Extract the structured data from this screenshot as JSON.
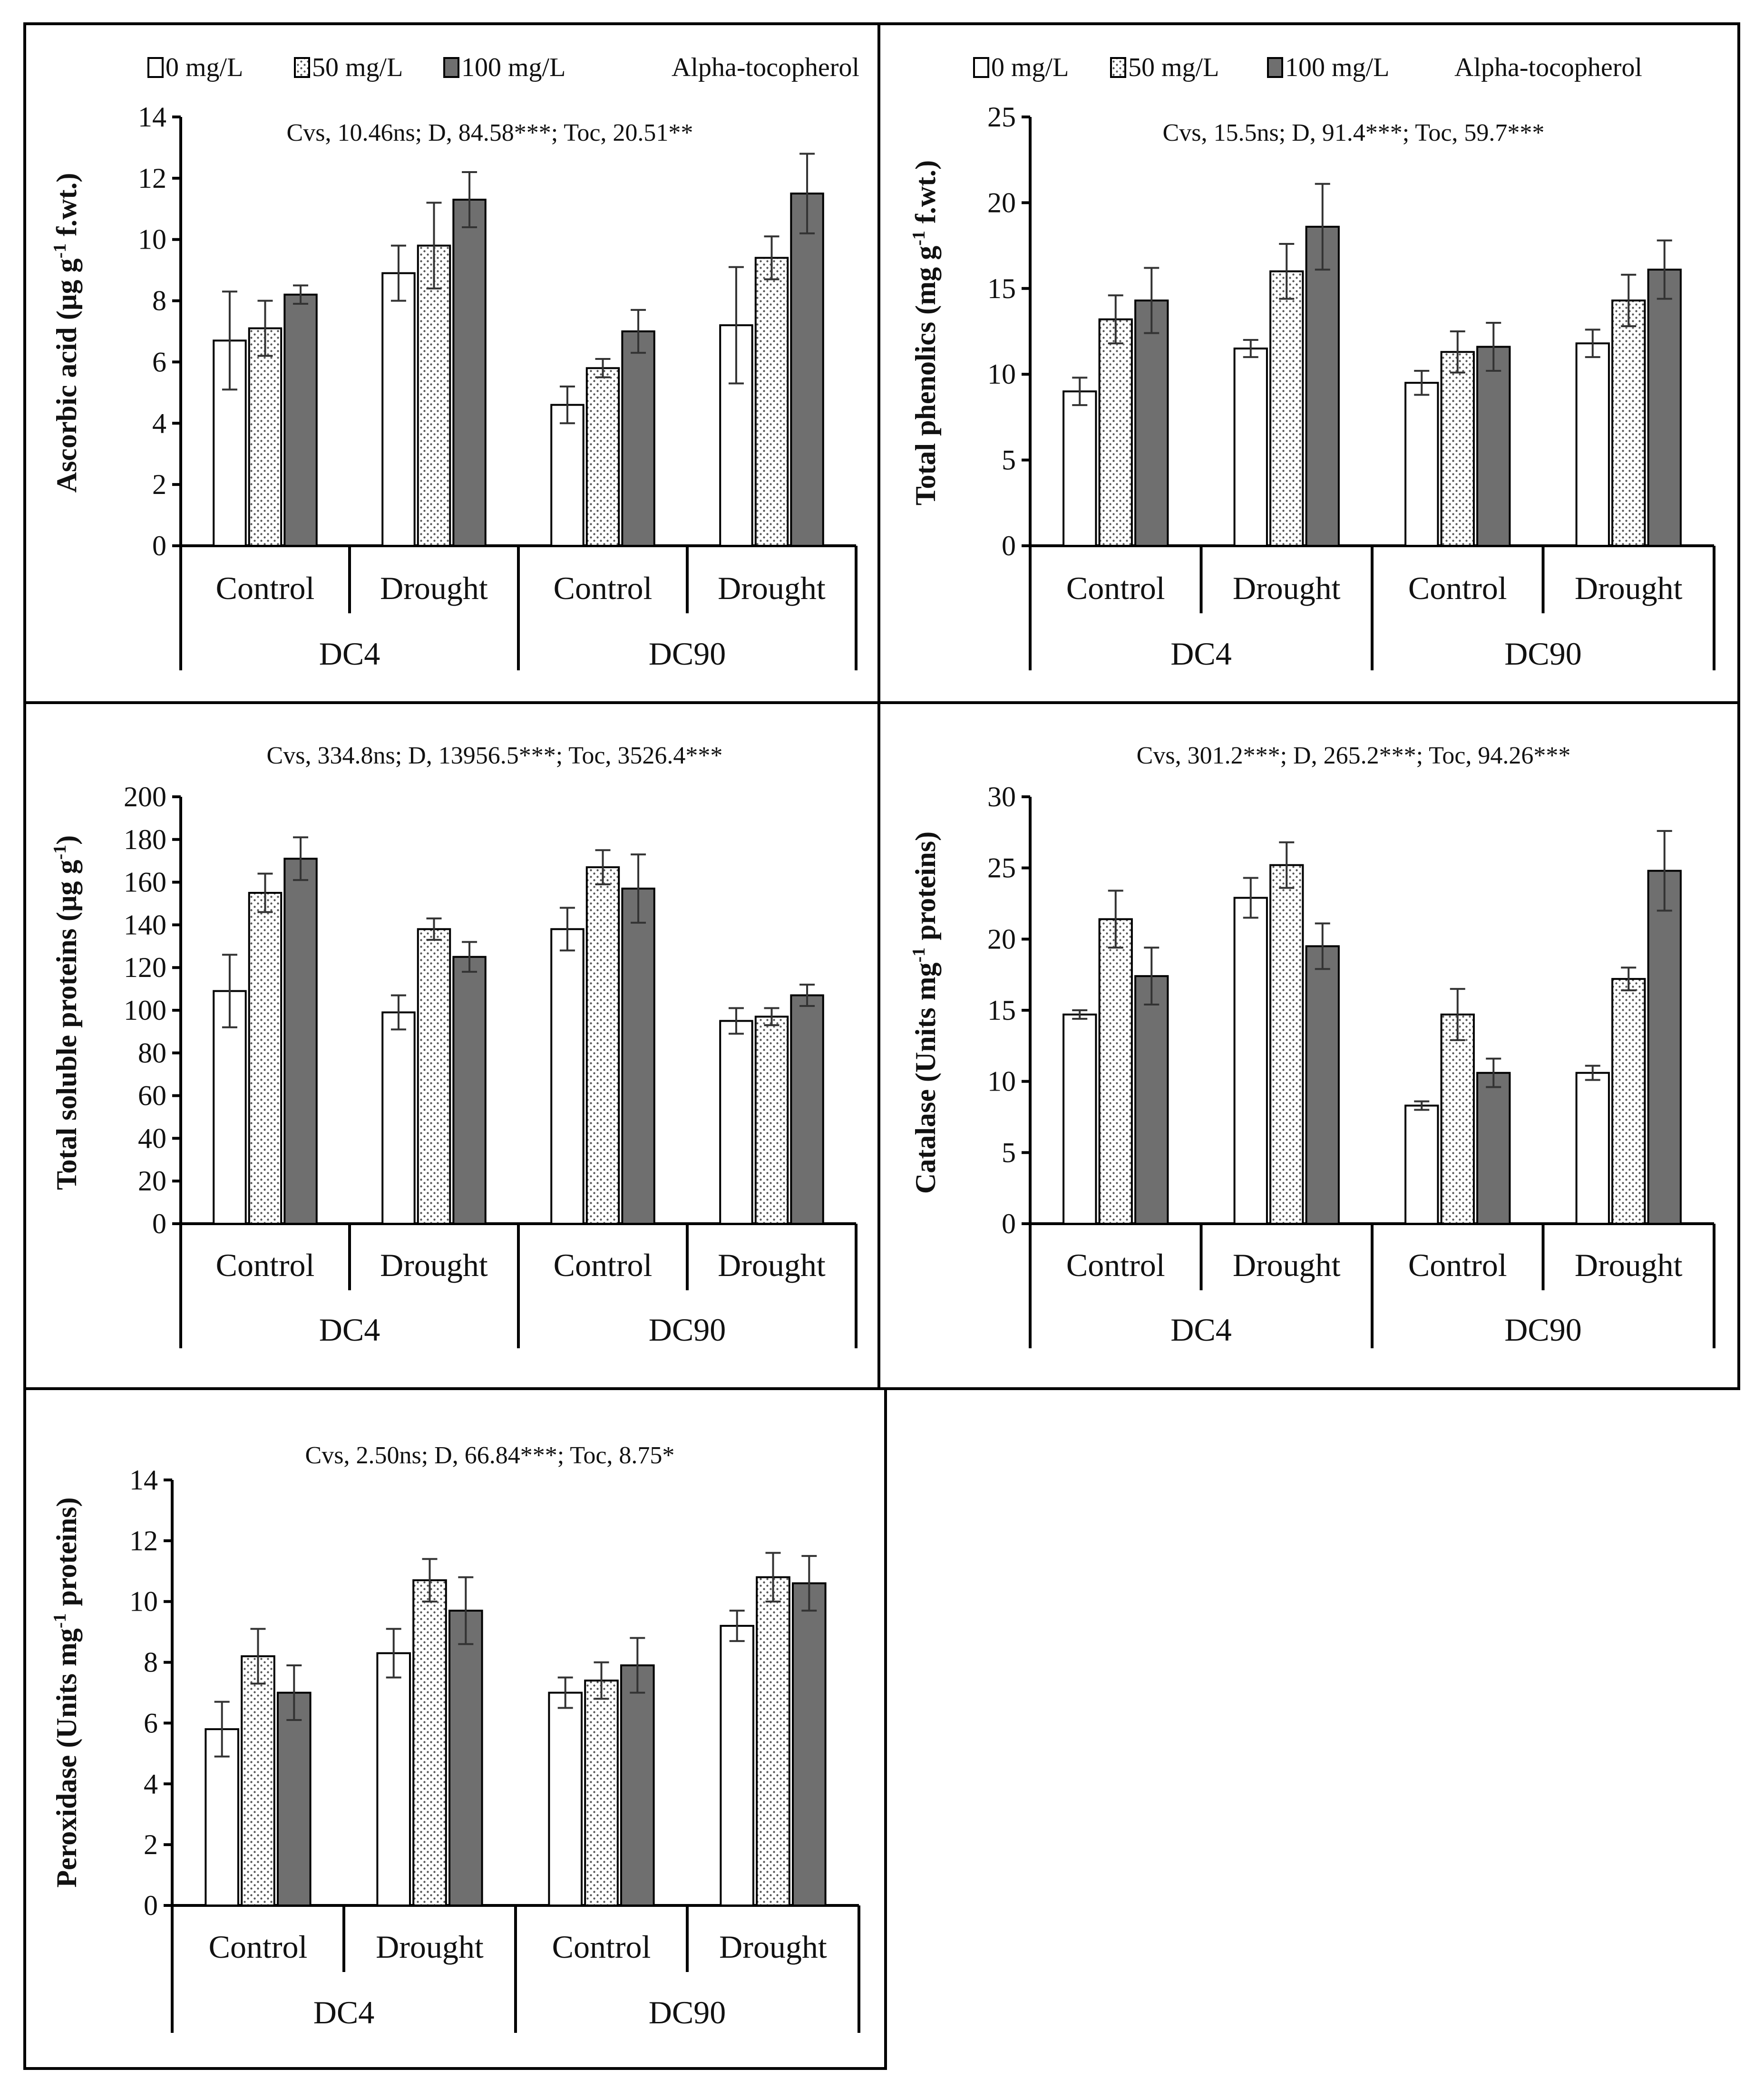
{
  "legend": {
    "items": [
      "0 mg/L",
      "50 mg/L",
      "100 mg/L"
    ],
    "suffix": "Alpha-tocopherol"
  },
  "colors": {
    "s0": "#ffffff",
    "s1": "dotted",
    "s2": "#6f6f6f"
  },
  "chart_data": [
    {
      "type": "bar",
      "stats": "Cvs, 10.46ns; D, 84.58***; Toc, 20.51**",
      "ylabel": "Ascorbic acid (µg g",
      "ylabel_sup": "-1",
      "ylabel_end": " f.wt.)",
      "ylim": [
        0,
        14
      ],
      "yticks": [
        "0",
        "2",
        "4",
        "6",
        "8",
        "10",
        "12",
        "14"
      ],
      "categories": [
        "Control",
        "Drought",
        "Control",
        "Drought"
      ],
      "groups": [
        "DC4",
        "DC90"
      ],
      "series": [
        {
          "name": "0 mg/L",
          "values": [
            6.7,
            8.9,
            4.6,
            7.2
          ],
          "errors": [
            1.6,
            0.9,
            0.6,
            1.9
          ]
        },
        {
          "name": "50 mg/L",
          "values": [
            7.1,
            9.8,
            5.8,
            9.4
          ],
          "errors": [
            0.9,
            1.4,
            0.3,
            0.7
          ]
        },
        {
          "name": "100 mg/L",
          "values": [
            8.2,
            11.3,
            7.0,
            11.5
          ],
          "errors": [
            0.3,
            0.9,
            0.7,
            1.3
          ]
        }
      ]
    },
    {
      "type": "bar",
      "stats": "Cvs, 15.5ns; D, 91.4***; Toc, 59.7***",
      "ylabel": "Total phenolics (mg g",
      "ylabel_sup": "-1",
      "ylabel_end": " f.wt.)",
      "ylim": [
        0,
        25
      ],
      "yticks": [
        "0",
        "5",
        "10",
        "15",
        "20",
        "25"
      ],
      "categories": [
        "Control",
        "Drought",
        "Control",
        "Drought"
      ],
      "groups": [
        "DC4",
        "DC90"
      ],
      "series": [
        {
          "name": "0 mg/L",
          "values": [
            9.0,
            11.5,
            9.5,
            11.8
          ],
          "errors": [
            0.8,
            0.5,
            0.7,
            0.8
          ]
        },
        {
          "name": "50 mg/L",
          "values": [
            13.2,
            16.0,
            11.3,
            14.3
          ],
          "errors": [
            1.4,
            1.6,
            1.2,
            1.5
          ]
        },
        {
          "name": "100 mg/L",
          "values": [
            14.3,
            18.6,
            11.6,
            16.1
          ],
          "errors": [
            1.9,
            2.5,
            1.4,
            1.7
          ]
        }
      ]
    },
    {
      "type": "bar",
      "stats": "Cvs, 334.8ns; D, 13956.5***; Toc, 3526.4***",
      "ylabel": "Total soluble proteins (µg g",
      "ylabel_sup": "-1",
      "ylabel_end": ")",
      "ylim": [
        0,
        200
      ],
      "yticks": [
        "0",
        "20",
        "40",
        "60",
        "80",
        "100",
        "120",
        "140",
        "160",
        "180",
        "200"
      ],
      "categories": [
        "Control",
        "Drought",
        "Control",
        "Drought"
      ],
      "groups": [
        "DC4",
        "DC90"
      ],
      "series": [
        {
          "name": "0 mg/L",
          "values": [
            109,
            99,
            138,
            95
          ],
          "errors": [
            17,
            8,
            10,
            6
          ]
        },
        {
          "name": "50 mg/L",
          "values": [
            155,
            138,
            167,
            97
          ],
          "errors": [
            9,
            5,
            8,
            4
          ]
        },
        {
          "name": "100 mg/L",
          "values": [
            171,
            125,
            157,
            107
          ],
          "errors": [
            10,
            7,
            16,
            5
          ]
        }
      ]
    },
    {
      "type": "bar",
      "stats": "Cvs, 301.2***; D, 265.2***; Toc, 94.26***",
      "ylabel": "Catalase (Units mg",
      "ylabel_sup": "-1",
      "ylabel_end": " proteins)",
      "ylim": [
        0,
        30
      ],
      "yticks": [
        "0",
        "5",
        "10",
        "15",
        "20",
        "25",
        "30"
      ],
      "categories": [
        "Control",
        "Drought",
        "Control",
        "Drought"
      ],
      "groups": [
        "DC4",
        "DC90"
      ],
      "series": [
        {
          "name": "0 mg/L",
          "values": [
            14.7,
            22.9,
            8.3,
            10.6
          ],
          "errors": [
            0.3,
            1.4,
            0.3,
            0.5
          ]
        },
        {
          "name": "50 mg/L",
          "values": [
            21.4,
            25.2,
            14.7,
            17.2
          ],
          "errors": [
            2.0,
            1.6,
            1.8,
            0.8
          ]
        },
        {
          "name": "100 mg/L",
          "values": [
            17.4,
            19.5,
            10.6,
            24.8
          ],
          "errors": [
            2.0,
            1.6,
            1.0,
            2.8
          ]
        }
      ]
    },
    {
      "type": "bar",
      "stats": "Cvs, 2.50ns; D, 66.84***; Toc, 8.75*",
      "ylabel": "Peroxidase (Units mg",
      "ylabel_sup": "-1",
      "ylabel_end": " proteins)",
      "ylim": [
        0,
        14
      ],
      "yticks": [
        "0",
        "2",
        "4",
        "6",
        "8",
        "10",
        "12",
        "14"
      ],
      "categories": [
        "Control",
        "Drought",
        "Control",
        "Drought"
      ],
      "groups": [
        "DC4",
        "DC90"
      ],
      "series": [
        {
          "name": "0 mg/L",
          "values": [
            5.8,
            8.3,
            7.0,
            9.2
          ],
          "errors": [
            0.9,
            0.8,
            0.5,
            0.5
          ]
        },
        {
          "name": "50 mg/L",
          "values": [
            8.2,
            10.7,
            7.4,
            10.8
          ],
          "errors": [
            0.9,
            0.7,
            0.6,
            0.8
          ]
        },
        {
          "name": "100 mg/L",
          "values": [
            7.0,
            9.7,
            7.9,
            10.6
          ],
          "errors": [
            0.9,
            1.1,
            0.9,
            0.9
          ]
        }
      ]
    }
  ]
}
